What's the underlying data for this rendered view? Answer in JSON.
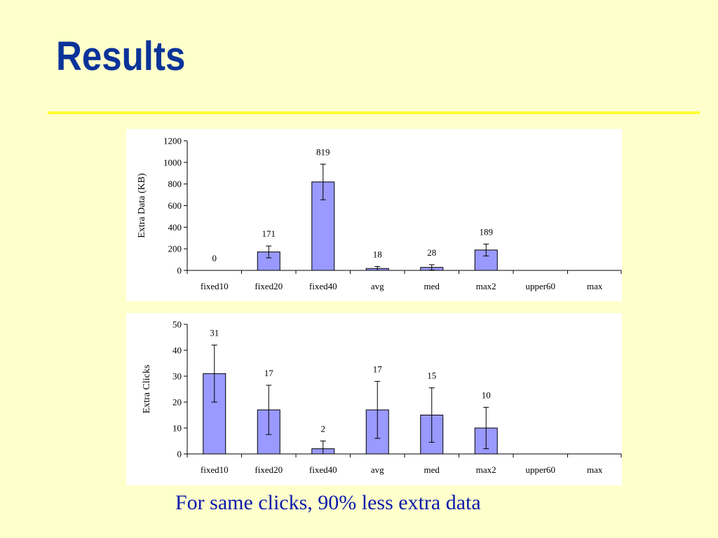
{
  "slide": {
    "title": "Results",
    "caption": "For same clicks, 90% less extra data"
  },
  "colors": {
    "background": "#FFFFCC",
    "title": "#0A3399",
    "rule": "#FFFF33",
    "bar_fill": "#9999FF",
    "caption": "#0A1AAA"
  },
  "chart_data": [
    {
      "type": "bar",
      "title": "",
      "xlabel": "",
      "ylabel": "Extra Data (KB)",
      "categories": [
        "fixed10",
        "fixed20",
        "fixed40",
        "avg",
        "med",
        "max2",
        "upper60",
        "max"
      ],
      "values": [
        0,
        171,
        819,
        18,
        28,
        189,
        null,
        null
      ],
      "data_labels": [
        "0",
        "171",
        "819",
        "18",
        "28",
        "189",
        "",
        ""
      ],
      "error": [
        0,
        55,
        165,
        18,
        25,
        55,
        null,
        null
      ],
      "ylim": [
        0,
        1200
      ],
      "yticks": [
        0,
        200,
        400,
        600,
        800,
        1000,
        1200
      ],
      "grid": false,
      "legend": "none"
    },
    {
      "type": "bar",
      "title": "",
      "xlabel": "",
      "ylabel": "Extra Clicks",
      "categories": [
        "fixed10",
        "fixed20",
        "fixed40",
        "avg",
        "med",
        "max2",
        "upper60",
        "max"
      ],
      "values": [
        31,
        17,
        2,
        17,
        15,
        10,
        null,
        null
      ],
      "data_labels": [
        "31",
        "17",
        "2",
        "17",
        "15",
        "10",
        "",
        ""
      ],
      "error": [
        11,
        9.5,
        3,
        11,
        10.5,
        8,
        null,
        null
      ],
      "ylim": [
        0,
        50
      ],
      "yticks": [
        0,
        10,
        20,
        30,
        40,
        50
      ],
      "grid": false,
      "legend": "none"
    }
  ]
}
